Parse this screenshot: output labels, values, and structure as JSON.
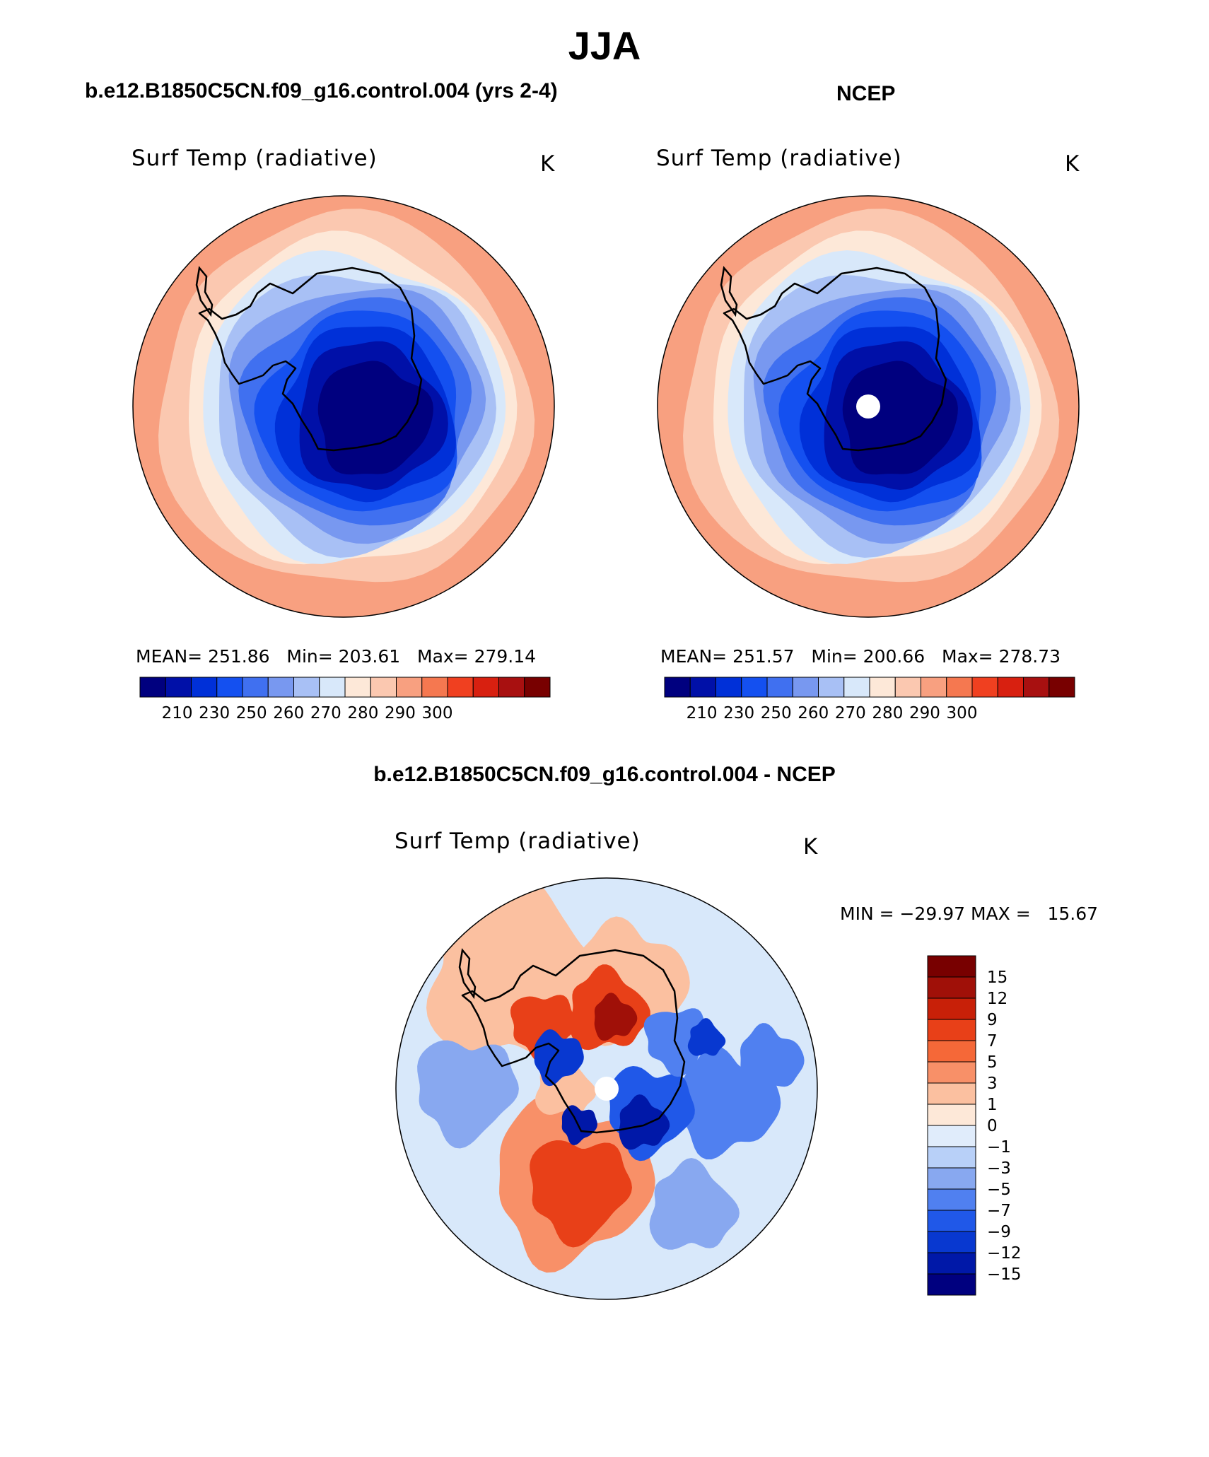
{
  "figure": {
    "title": "JJA",
    "left_panel_title": "b.e12.B1850C5CN.f09_g16.control.004 (yrs 2-4)",
    "right_panel_title": "NCEP",
    "diff_panel_title": "b.e12.B1850C5CN.f09_g16.control.004 - NCEP"
  },
  "panels": {
    "model": {
      "variable": "Surf Temp (radiative)",
      "units": "K",
      "mean_label": "MEAN=",
      "mean": "251.86",
      "min_label": "Min=",
      "min": "203.61",
      "max_label": "Max=",
      "max": "279.14",
      "has_pole_hole": false
    },
    "obs": {
      "variable": "Surf Temp (radiative)",
      "units": "K",
      "mean_label": "MEAN=",
      "mean": "251.57",
      "min_label": "Min=",
      "min": "200.66",
      "max_label": "Max=",
      "max": "278.73",
      "has_pole_hole": true
    },
    "diff": {
      "variable": "Surf Temp (radiative)",
      "units": "K",
      "minmax_text": "MIN = −29.97 MAX =   15.67",
      "has_pole_hole": true
    }
  },
  "colorbar_abs": {
    "colors": [
      "#00007f",
      "#0010a8",
      "#0030d8",
      "#1450f0",
      "#4070f0",
      "#7898f0",
      "#a8c0f5",
      "#d8e8fa",
      "#fde8d8",
      "#fbc8b0",
      "#f8a080",
      "#f57850",
      "#f04020",
      "#d82010",
      "#a81010",
      "#780000"
    ],
    "tick_labels": [
      "210",
      "230",
      "250",
      "260",
      "270",
      "280",
      "290",
      "300"
    ]
  },
  "colorbar_diff": {
    "colors": [
      "#00007f",
      "#0018a8",
      "#0838d0",
      "#2058e8",
      "#5080f0",
      "#88a8f0",
      "#b8d0f8",
      "#e0ecfb",
      "#fde8d8",
      "#fbc0a0",
      "#f89068",
      "#f56838",
      "#e84018",
      "#c82008",
      "#a01008",
      "#780000"
    ],
    "tick_labels": [
      "15",
      "12",
      "9",
      "7",
      "5",
      "3",
      "1",
      "0",
      "−1",
      "−3",
      "−5",
      "−7",
      "−9",
      "−12",
      "−15"
    ]
  },
  "map_style": {
    "field_colors": [
      "#fbc8b0",
      "#fde8d8",
      "#d8e8fa",
      "#a8c0f5",
      "#7898f0",
      "#4070f0",
      "#1450f0",
      "#0030d8",
      "#0010a8",
      "#00007f"
    ],
    "outer_color": "#f8a080",
    "diff_background": "#d8e8fa"
  }
}
